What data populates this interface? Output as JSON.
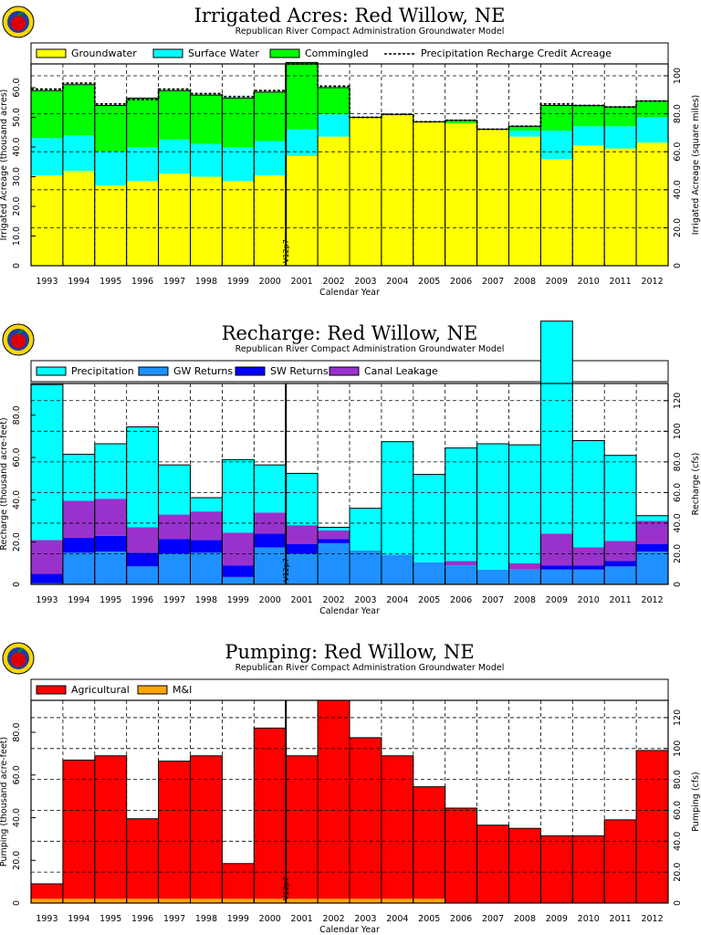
{
  "logo_icon": "apple-seal-logo",
  "colors": {
    "groundwater": "#ffff00",
    "surface_water": "#00ffff",
    "commingled": "#00ff00",
    "precipitation": "#00ffff",
    "gw_returns": "#1e90ff",
    "sw_returns": "#0000ff",
    "canal_leakage": "#9932cc",
    "agricultural": "#ff0000",
    "mi": "#ffa500"
  },
  "chart_data": [
    {
      "type": "area",
      "stacked": true,
      "title": "Irrigated Acres: Red Willow, NE",
      "subtitle": "Republican River Compact Administration Groundwater Model",
      "xlabel": "Calendar Year",
      "ylabel": "Irrigated Acreage (thousand acres)",
      "y2label": "Irrigated Acreage (square miles)",
      "categories": [
        "1993",
        "1994",
        "1995",
        "1996",
        "1997",
        "1998",
        "1999",
        "2000",
        "2001",
        "2002",
        "2003",
        "2004",
        "2005",
        "2006",
        "2007",
        "2008",
        "2009",
        "2010",
        "2011",
        "2012"
      ],
      "series": [
        {
          "name": "Groundwater",
          "values": [
            30.5,
            32.0,
            27.0,
            28.5,
            31.0,
            30.0,
            28.5,
            30.5,
            37.0,
            43.5,
            50.0,
            51.0,
            48.5,
            48.0,
            46.0,
            43.5,
            36.0,
            40.5,
            39.5,
            41.5
          ]
        },
        {
          "name": "Surface Water",
          "values": [
            12.5,
            12.0,
            11.5,
            11.5,
            11.5,
            11.0,
            11.5,
            11.5,
            9.0,
            7.5,
            0.0,
            0.0,
            0.0,
            0.0,
            0.0,
            2.0,
            9.5,
            6.5,
            7.5,
            8.5
          ]
        },
        {
          "name": "Commingled",
          "values": [
            16.0,
            17.0,
            15.5,
            16.5,
            16.5,
            16.5,
            16.5,
            16.5,
            22.5,
            9.0,
            0.0,
            0.0,
            0.0,
            1.0,
            0.0,
            1.5,
            8.5,
            7.0,
            6.5,
            5.5
          ]
        }
      ],
      "line_series": {
        "name": "Precipitation Recharge Credit Acreage",
        "values": [
          59.5,
          61.5,
          54.5,
          56.0,
          59.5,
          58.0,
          57.0,
          59.0,
          68.0,
          60.5,
          50.0,
          51.0,
          48.5,
          49.0,
          46.0,
          47.0,
          54.5,
          54.0,
          53.5,
          55.5
        ]
      },
      "yticks": [
        "0",
        "10.0",
        "20.0",
        "30.0",
        "40.0",
        "50.0",
        "60.0"
      ],
      "y2ticks": [
        "0",
        "20.0",
        "40.0",
        "60.0",
        "80.0",
        "100"
      ],
      "ylim": [
        0,
        68
      ],
      "y2lim": [
        0,
        106.25
      ],
      "marker": "V12p7",
      "legend": "top"
    },
    {
      "type": "area",
      "stacked": true,
      "title": "Recharge: Red Willow, NE",
      "subtitle": "Republican River Compact Administration Groundwater Model",
      "xlabel": "Calendar Year",
      "ylabel": "Recharge (thousand acre-feet)",
      "y2label": "Recharge (cfs)",
      "categories": [
        "1993",
        "1994",
        "1995",
        "1996",
        "1997",
        "1998",
        "1999",
        "2000",
        "2001",
        "2002",
        "2003",
        "2004",
        "2005",
        "2006",
        "2007",
        "2008",
        "2009",
        "2010",
        "2011",
        "2012"
      ],
      "series": [
        {
          "name": "GW Returns",
          "values": [
            0.5,
            15.0,
            15.5,
            8.5,
            14.5,
            15.0,
            3.5,
            17.5,
            14.5,
            19.5,
            16.0,
            14.0,
            10.5,
            9.0,
            7.0,
            7.0,
            7.0,
            7.0,
            8.5,
            15.5
          ]
        },
        {
          "name": "SW Returns",
          "values": [
            4.5,
            7.0,
            7.5,
            6.5,
            7.0,
            6.0,
            5.5,
            6.5,
            4.5,
            2.0,
            0.0,
            0.0,
            0.0,
            0.0,
            0.0,
            0.0,
            2.0,
            2.0,
            2.5,
            3.5
          ]
        },
        {
          "name": "Canal Leakage",
          "values": [
            16.0,
            17.5,
            17.5,
            12.0,
            11.5,
            13.5,
            15.5,
            10.0,
            9.0,
            4.0,
            0.0,
            0.0,
            0.0,
            2.0,
            0.0,
            3.0,
            15.0,
            8.5,
            9.5,
            11.0
          ]
        },
        {
          "name": "Precipitation",
          "values": [
            73.5,
            22.0,
            26.0,
            47.5,
            23.5,
            6.5,
            34.5,
            22.5,
            24.5,
            1.5,
            20.0,
            53.5,
            41.5,
            53.5,
            59.5,
            56.0,
            100.5,
            50.5,
            40.5,
            2.5
          ]
        }
      ],
      "yticks": [
        "0",
        "20.0",
        "40.0",
        "60.0",
        "80.0"
      ],
      "y2ticks": [
        "0",
        "20.0",
        "40.0",
        "60.0",
        "80.0",
        "100",
        "120"
      ],
      "ylim": [
        0,
        95
      ],
      "y2lim": [
        0,
        131.2
      ],
      "marker": "V12p7",
      "legend": "top"
    },
    {
      "type": "area",
      "stacked": true,
      "title": "Pumping: Red Willow, NE",
      "subtitle": "Republican River Compact Administration Groundwater Model",
      "xlabel": "Calendar Year",
      "ylabel": "Pumping (thousand acre-feet)",
      "y2label": "Pumping (cfs)",
      "categories": [
        "1993",
        "1994",
        "1995",
        "1996",
        "1997",
        "1998",
        "1999",
        "2000",
        "2001",
        "2002",
        "2003",
        "2004",
        "2005",
        "2006",
        "2007",
        "2008",
        "2009",
        "2010",
        "2011",
        "2012"
      ],
      "series": [
        {
          "name": "M&I",
          "values": [
            2.0,
            2.0,
            2.0,
            2.0,
            2.0,
            2.0,
            2.0,
            2.0,
            2.0,
            2.0,
            2.0,
            2.0,
            2.0,
            0.0,
            0.0,
            0.0,
            0.0,
            0.0,
            0.0,
            0.0
          ]
        },
        {
          "name": "Agricultural",
          "values": [
            7.0,
            65.0,
            67.0,
            37.5,
            64.5,
            67.0,
            16.5,
            80.0,
            67.0,
            93.0,
            75.5,
            67.0,
            52.5,
            44.5,
            36.5,
            35.0,
            31.5,
            31.5,
            39.0,
            71.5
          ]
        }
      ],
      "yticks": [
        "0",
        "20.0",
        "40.0",
        "60.0",
        "80.0"
      ],
      "y2ticks": [
        "0",
        "20.0",
        "40.0",
        "60.0",
        "80.0",
        "100",
        "120"
      ],
      "ylim": [
        0,
        95
      ],
      "y2lim": [
        0,
        131.2
      ],
      "marker": "V12p7",
      "legend": "top"
    }
  ]
}
